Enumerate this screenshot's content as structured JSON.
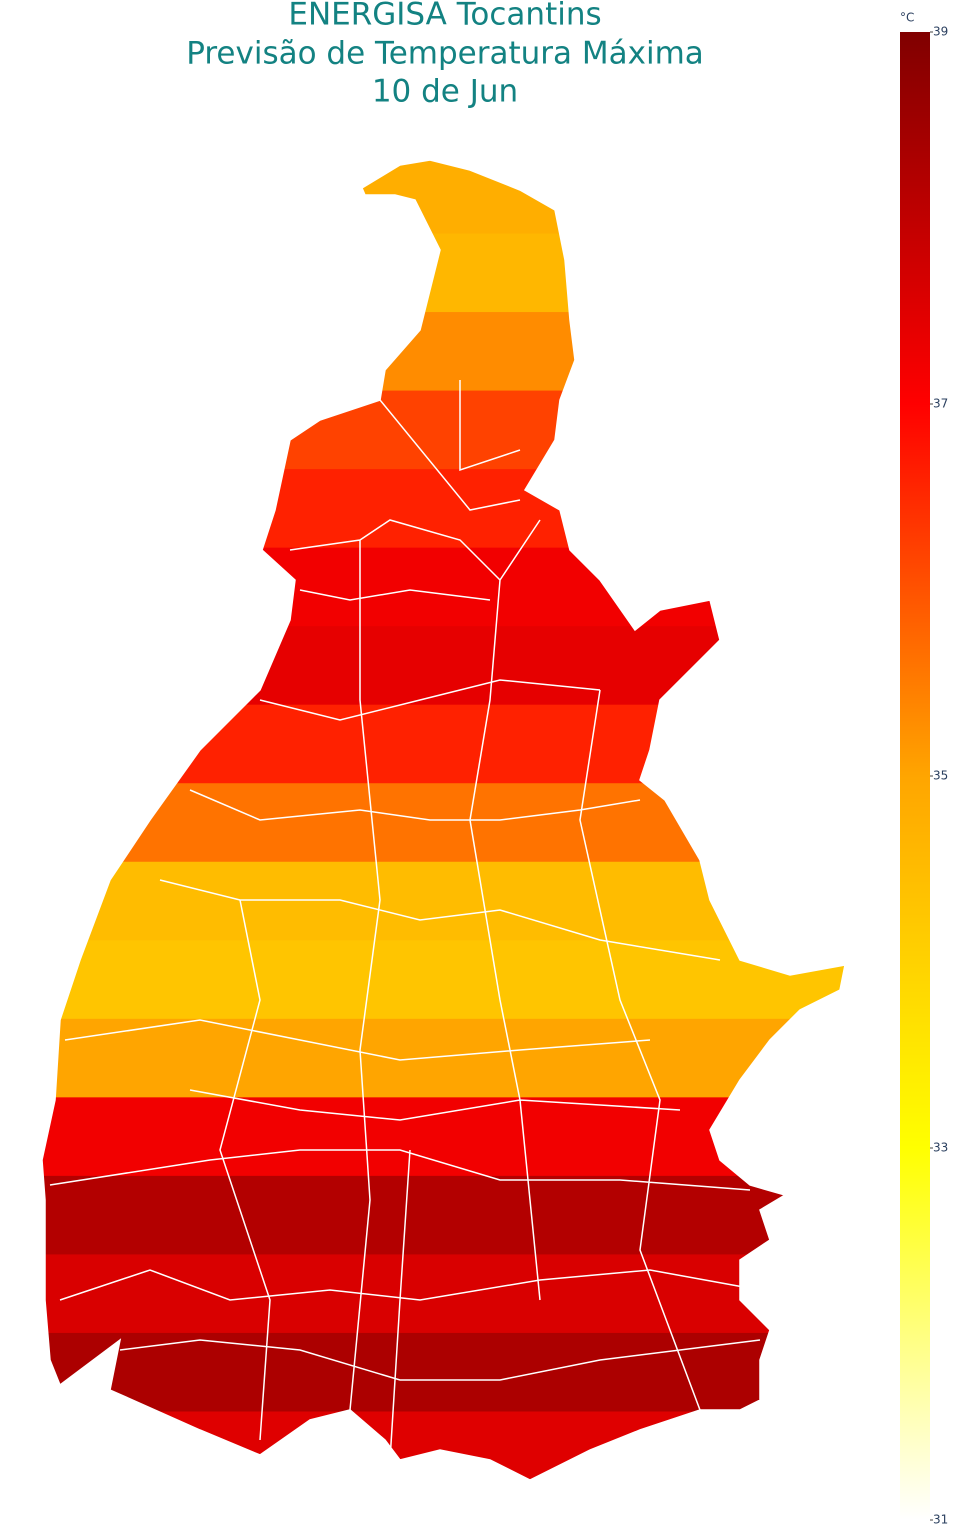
{
  "chart_data": {
    "type": "heatmap-map",
    "title": [
      "ENERGISA Tocantins",
      "Previsão de Temperatura Máxima",
      "10 de Jun"
    ],
    "colorbar": {
      "title": "°C",
      "lim": [
        31,
        39
      ],
      "ticks": [
        31,
        33,
        35,
        37,
        39
      ],
      "colors": [
        "#ffffff",
        "#ffff00",
        "#ffa500",
        "#ff0000",
        "#800000"
      ]
    },
    "bands": [
      34.8,
      34.6,
      35.3,
      36.2,
      36.6,
      37.2,
      37.4,
      36.6,
      35.6,
      34.5,
      34.3,
      35.0,
      37.2,
      38.2,
      37.6,
      38.3,
      37.5
    ]
  }
}
